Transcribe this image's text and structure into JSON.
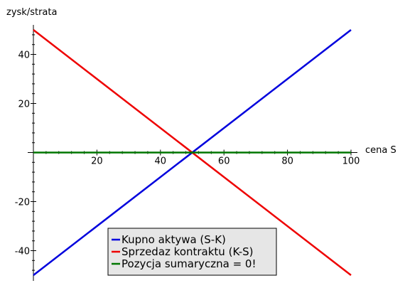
{
  "chart_data": {
    "type": "line",
    "xlabel": "cena S",
    "ylabel": "zysk/strata",
    "xlim": [
      0,
      100
    ],
    "ylim": [
      -50,
      50
    ],
    "x_ticks": [
      20,
      40,
      60,
      80,
      100
    ],
    "y_ticks": [
      -40,
      -20,
      20,
      40
    ],
    "grid": false,
    "legend_position": "bottom-center",
    "series": [
      {
        "name": "Kupno aktywa (S-K)",
        "color": "#0000dd",
        "x": [
          0,
          100
        ],
        "y": [
          -50,
          50
        ]
      },
      {
        "name": "Sprzedaz kontraktu (K-S)",
        "color": "#ee0000",
        "x": [
          0,
          100
        ],
        "y": [
          50,
          -50
        ]
      },
      {
        "name": "Pozycja sumaryczna = 0!",
        "color": "#007700",
        "x": [
          0,
          100
        ],
        "y": [
          0,
          0
        ]
      }
    ]
  }
}
